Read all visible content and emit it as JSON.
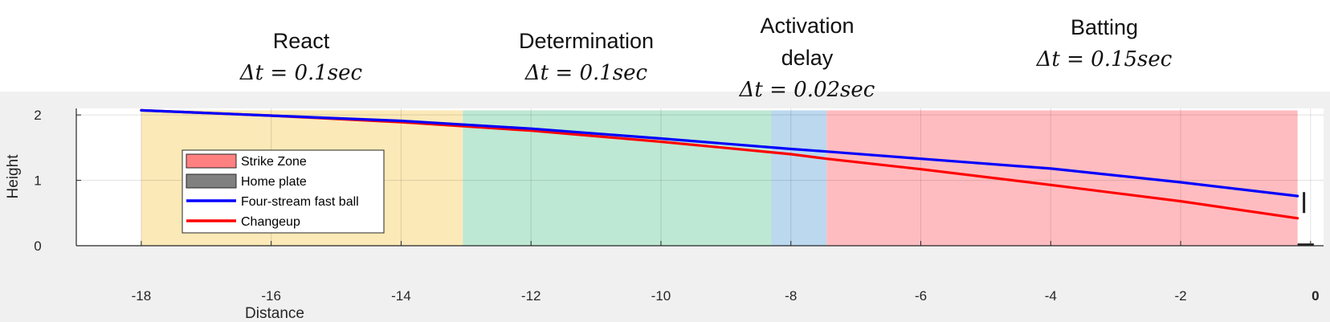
{
  "phases": [
    {
      "name": "React",
      "name2": "",
      "dt": "Δt = 0.1sec"
    },
    {
      "name": "Determination",
      "name2": "",
      "dt": "Δt = 0.1sec"
    },
    {
      "name": "Activation",
      "name2": "delay",
      "dt": "Δt = 0.02sec"
    },
    {
      "name": "Batting",
      "name2": "",
      "dt": "Δt = 0.15sec"
    }
  ],
  "chart_data": {
    "type": "line",
    "title": "",
    "xlabel": "Distance",
    "ylabel": "Height",
    "xlim": [
      -19,
      0.2
    ],
    "ylim": [
      0,
      2.1
    ],
    "grid": true,
    "x_ticks": [
      -18,
      -16,
      -14,
      -12,
      -10,
      -8,
      -6,
      -4,
      -2,
      0
    ],
    "x_tick_labels": [
      "-18",
      "-16",
      "-14",
      "-12",
      "-10",
      "-8",
      "-6",
      "-4",
      "-2",
      "0"
    ],
    "y_ticks": [
      0,
      1,
      2
    ],
    "y_tick_labels": [
      "0",
      "1",
      "2"
    ],
    "regions": [
      {
        "label": "React",
        "x0": -18.0,
        "x1": -13.05,
        "color": "#fce9b8"
      },
      {
        "label": "Determination",
        "x0": -13.05,
        "x1": -8.3,
        "color": "#bde8d3"
      },
      {
        "label": "Activation delay",
        "x0": -8.3,
        "x1": -7.45,
        "color": "#bbd8ef"
      },
      {
        "label": "Batting",
        "x0": -7.45,
        "x1": -0.2,
        "color": "#ffbcc0"
      }
    ],
    "series": [
      {
        "name": "Changeup",
        "color": "#ff0000",
        "x": [
          -18,
          -16,
          -14,
          -12,
          -10,
          -8,
          -7.45,
          -6,
          -4,
          -2,
          -0.2
        ],
        "y": [
          2.07,
          1.99,
          1.89,
          1.76,
          1.59,
          1.4,
          1.33,
          1.17,
          0.93,
          0.68,
          0.42
        ]
      },
      {
        "name": "Four-stream fast ball",
        "color": "#0000ff",
        "x": [
          -18,
          -16,
          -14,
          -12,
          -10,
          -8,
          -7.45,
          -6,
          -4,
          -2,
          -0.2
        ],
        "y": [
          2.07,
          1.99,
          1.91,
          1.79,
          1.64,
          1.48,
          1.44,
          1.33,
          1.18,
          0.97,
          0.76
        ]
      }
    ],
    "legend": {
      "placement": "upper-left inside axes",
      "entries": [
        {
          "label": "Strike Zone",
          "kind": "patch",
          "color": "#ff8080"
        },
        {
          "label": "Home plate",
          "kind": "patch",
          "color": "#808080"
        },
        {
          "label": "Four-stream fast ball",
          "kind": "line",
          "color": "#0000ff"
        },
        {
          "label": "Changeup",
          "kind": "line",
          "color": "#ff0000"
        }
      ]
    }
  }
}
